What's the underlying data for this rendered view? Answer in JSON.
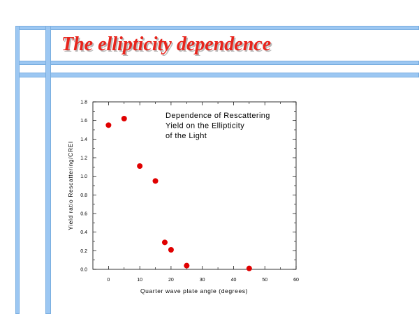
{
  "slide": {
    "title": "The ellipticity dependence"
  },
  "colors": {
    "title": "#e8241c",
    "frame": "#9cc7f2",
    "points": "#e00000"
  },
  "chart_data": {
    "type": "scatter",
    "xlabel": "Quarter wave plate angle (degrees)",
    "ylabel": "Yield ratio Rescattering/CREI",
    "xlim": [
      -5,
      60
    ],
    "ylim": [
      0,
      1.8
    ],
    "x_ticks": [
      0,
      10,
      20,
      30,
      40,
      50,
      60
    ],
    "y_ticks": [
      0.0,
      0.2,
      0.4,
      0.6,
      0.8,
      1.0,
      1.2,
      1.4,
      1.6,
      1.8
    ],
    "x_tick_labels": [
      "0",
      "10",
      "20",
      "30",
      "40",
      "50",
      "60"
    ],
    "y_tick_labels": [
      "0.0",
      "0.2",
      "0.4",
      "0.6",
      "0.8",
      "1.0",
      "1.2",
      "1.4",
      "1.6",
      "1.8"
    ],
    "annotation": [
      "Dependence of Rescattering",
      "Yield on the Ellipticity",
      "of the Light"
    ],
    "grid": false,
    "series": [
      {
        "x": [
          0,
          5,
          10,
          15,
          18,
          20,
          25,
          45
        ],
        "y": [
          1.55,
          1.62,
          1.11,
          0.95,
          0.29,
          0.21,
          0.04,
          0.01
        ]
      }
    ]
  }
}
